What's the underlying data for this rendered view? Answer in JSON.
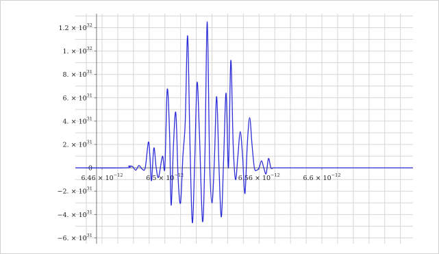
{
  "chart_data": {
    "type": "line",
    "title": "",
    "xlabel": "",
    "ylabel": "",
    "xlim": [
      6.443e-12,
      6.658e-12
    ],
    "ylim": [
      -6.5e+31,
      1.32e+32
    ],
    "grid": true,
    "line_color": "#2c2cd8",
    "x_ticks": [
      {
        "value": 6.46e-12,
        "mantissa": "6.46",
        "base": "10",
        "exp": "-12"
      },
      {
        "value": 6.5e-12,
        "mantissa": "6.5",
        "base": "10",
        "exp": "-12"
      },
      {
        "value": 6.56e-12,
        "mantissa": "6.56",
        "base": "10",
        "exp": "-12"
      },
      {
        "value": 6.6e-12,
        "mantissa": "6.6",
        "base": "10",
        "exp": "-12"
      }
    ],
    "y_ticks": [
      {
        "value": 1.2e+32,
        "mantissa": "1.2",
        "base": "10",
        "exp": "32"
      },
      {
        "value": 1e+32,
        "mantissa": "1.",
        "base": "10",
        "exp": "32"
      },
      {
        "value": 8e+31,
        "mantissa": "8.",
        "base": "10",
        "exp": "31"
      },
      {
        "value": 6e+31,
        "mantissa": "6.",
        "base": "10",
        "exp": "31"
      },
      {
        "value": 4e+31,
        "mantissa": "4.",
        "base": "10",
        "exp": "31"
      },
      {
        "value": 2e+31,
        "mantissa": "2.",
        "base": "10",
        "exp": "31"
      },
      {
        "value": 0,
        "mantissa": "0",
        "base": "",
        "exp": ""
      },
      {
        "value": -2e+31,
        "mantissa": "-2.",
        "base": "10",
        "exp": "31"
      },
      {
        "value": -4e+31,
        "mantissa": "-4.",
        "base": "10",
        "exp": "31"
      },
      {
        "value": -6e+31,
        "mantissa": "-6.",
        "base": "10",
        "exp": "31"
      }
    ],
    "series": [
      {
        "name": "",
        "x": [
          6.443e-12,
          6.475e-12,
          6.477e-12,
          6.4795e-12,
          6.4815e-12,
          6.4835e-12,
          6.4855e-12,
          6.4875e-12,
          6.4895e-12,
          6.4905e-12,
          6.4915e-12,
          6.493e-12,
          6.4945e-12,
          6.496e-12,
          6.4985e-12,
          6.5e-12,
          6.5015e-12,
          6.503e-12,
          6.504e-12,
          6.5055e-12,
          6.507e-12,
          6.5085e-12,
          6.51e-12,
          6.5115e-12,
          6.513e-12,
          6.5145e-12,
          6.516e-12,
          6.5175e-12,
          6.519e-12,
          6.5205e-12,
          6.522e-12,
          6.524e-12,
          6.5255e-12,
          6.527e-12,
          6.5285e-12,
          6.53e-12,
          6.5315e-12,
          6.533e-12,
          6.5345e-12,
          6.536e-12,
          6.5375e-12,
          6.539e-12,
          6.5405e-12,
          6.542e-12,
          6.5435e-12,
          6.545e-12,
          6.5465e-12,
          6.548e-12,
          6.5495e-12,
          6.551e-12,
          6.5525e-12,
          6.554e-12,
          6.5555e-12,
          6.557e-12,
          6.5585e-12,
          6.56e-12,
          6.5615e-12,
          6.563e-12,
          6.5645e-12,
          6.566e-12,
          6.5675e-12,
          6.569e-12,
          6.5705e-12,
          6.572e-12,
          6.5735e-12,
          6.575e-12,
          6.5765e-12,
          6.578e-12,
          6.5795e-12,
          6.581e-12,
          6.5825e-12,
          6.584e-12,
          6.5855e-12,
          6.587e-12,
          6.5885e-12,
          6.59e-12,
          6.5915e-12,
          6.593e-12,
          6.5945e-12,
          6.596e-12,
          6.5975e-12,
          6.599e-12,
          6.6005e-12,
          6.602e-12,
          6.6035e-12,
          6.605e-12,
          6.6065e-12,
          6.608e-12,
          6.6095e-12,
          6.611e-12,
          6.6125e-12,
          6.615e-12,
          6.658e-12
        ],
        "y": [
          0,
          0,
          1.5e+30,
          1e+30,
          -2e+30,
          2e+30,
          -1e+30,
          0,
          2.2e+31,
          1e+31,
          -1.1e+31,
          1.7e+31,
          0,
          -8e+30,
          1e+31,
          0,
          6.7e+31,
          3e+31,
          -3.2e+31,
          2e+31,
          4.7e+31,
          -1e+31,
          -3e+31,
          1e+31,
          4e+31,
          1.13e+32,
          2e+31,
          -4.7e+31,
          5e+30,
          7.3e+31,
          3e+31,
          -4.6e+31,
          1e+31,
          1.25e+32,
          6e+30,
          -3e+31,
          5e+30,
          6.1e+31,
          0,
          -4.2e+31,
          1e+31,
          6.4e+31,
          0,
          9.2e+31,
          2e+31,
          -1e+31,
          1e+31,
          3.1e+31,
          1e+31,
          -2.2e+31,
          2e+31,
          4.3e+31,
          2e+31,
          0,
          -2e+30,
          0,
          6e+30,
          0,
          -5e+30,
          8e+30,
          0,
          0,
          0,
          0,
          0,
          0,
          0,
          0,
          0,
          0,
          0,
          0,
          0,
          0,
          0,
          0,
          0,
          0,
          0,
          0,
          0,
          0,
          0,
          0,
          0,
          0,
          0,
          0,
          0,
          0,
          0,
          0,
          0
        ]
      }
    ]
  }
}
